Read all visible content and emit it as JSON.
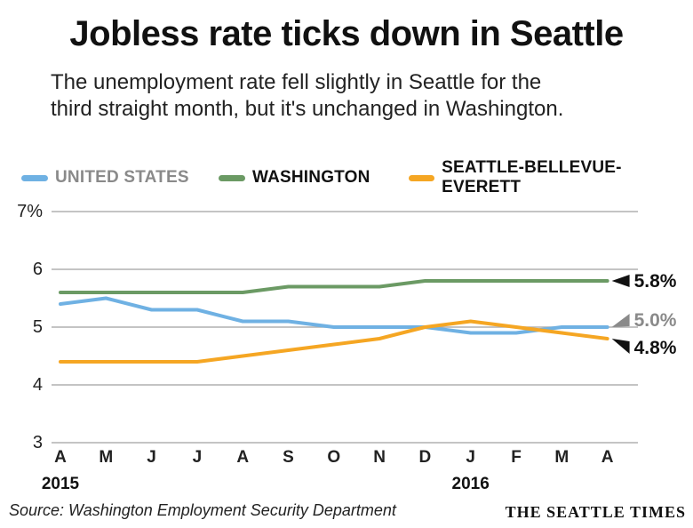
{
  "header": {
    "title": "Jobless rate ticks down in Seattle",
    "subtitle_line1": "The unemployment rate fell slightly in Seattle for the",
    "subtitle_line2": "third straight month, but it's unchanged in Washington."
  },
  "footer": {
    "source": "Source: Washington Employment Security Department",
    "brand": "THE SEATTLE TIMES"
  },
  "colors": {
    "united_states": "#6fb1e3",
    "washington": "#6b9a64",
    "seattle": "#f5a623",
    "grid": "#b0b0b0",
    "us_label": "#8a8a8a"
  },
  "chart_data": {
    "type": "line",
    "title": "Jobless rate ticks down in Seattle",
    "categories": [
      "A",
      "M",
      "J",
      "J",
      "A",
      "S",
      "O",
      "N",
      "D",
      "J",
      "F",
      "M",
      "A"
    ],
    "year_labels": [
      {
        "index": 0,
        "label": "2015"
      },
      {
        "index": 9,
        "label": "2016"
      }
    ],
    "ylim": [
      3,
      7
    ],
    "yticks": [
      3,
      4,
      5,
      6,
      7
    ],
    "ytick_labels": [
      "3",
      "4",
      "5",
      "6",
      "7%"
    ],
    "grid": true,
    "legend_position": "top",
    "series": [
      {
        "key": "united_states",
        "name": "UNITED STATES",
        "values": [
          5.4,
          5.5,
          5.3,
          5.3,
          5.1,
          5.1,
          5.0,
          5.0,
          5.0,
          4.9,
          4.9,
          5.0,
          5.0
        ],
        "end_label": "5.0%"
      },
      {
        "key": "washington",
        "name": "WASHINGTON",
        "values": [
          5.6,
          5.6,
          5.6,
          5.6,
          5.6,
          5.7,
          5.7,
          5.7,
          5.8,
          5.8,
          5.8,
          5.8,
          5.8
        ],
        "end_label": "5.8%"
      },
      {
        "key": "seattle",
        "name": "SEATTLE-BELLEVUE-EVERETT",
        "values": [
          4.4,
          4.4,
          4.4,
          4.4,
          4.5,
          4.6,
          4.7,
          4.8,
          5.0,
          5.1,
          5.0,
          4.9,
          4.8
        ],
        "end_label": "4.8%"
      }
    ]
  }
}
